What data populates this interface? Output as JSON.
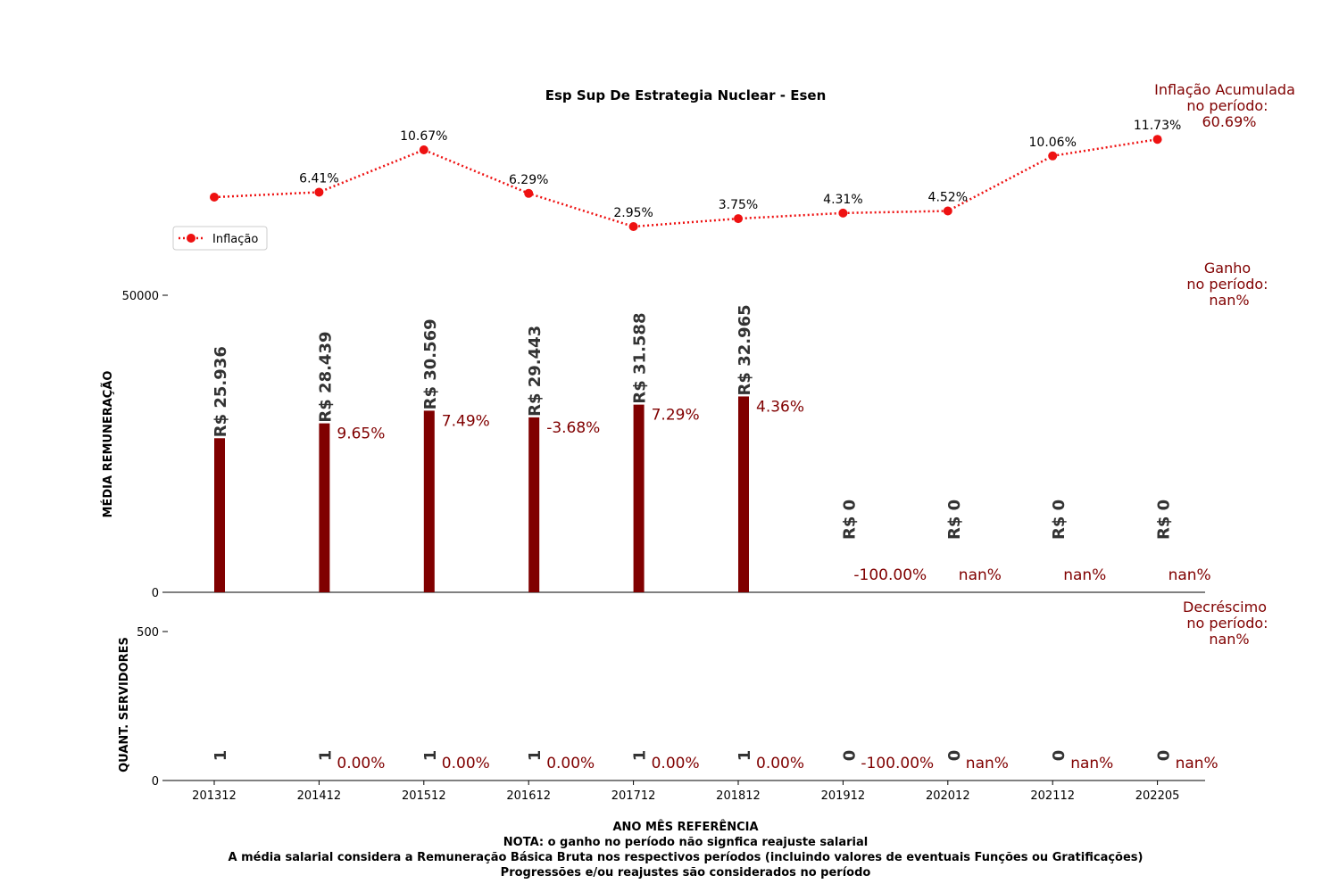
{
  "chart_data": {
    "title": "Esp Sup De Estrategia Nuclear - Esen",
    "type": "bar",
    "categories": [
      "201312",
      "201412",
      "201512",
      "201612",
      "201712",
      "201812",
      "201912",
      "202012",
      "202112",
      "202205"
    ],
    "inflation": {
      "legend": "Inflação",
      "values": [
        5.91,
        6.41,
        10.67,
        6.29,
        2.95,
        3.75,
        4.31,
        4.52,
        10.06,
        11.73
      ],
      "labels": [
        "",
        "6.41%",
        "10.67%",
        "6.29%",
        "2.95%",
        "3.75%",
        "4.31%",
        "4.52%",
        "10.06%",
        "11.73%"
      ],
      "color": "#ee1111"
    },
    "salary": {
      "ylabel": "MÉDIA REMUNERAÇÃO",
      "yticks": [
        {
          "v": 0,
          "t": "0"
        },
        {
          "v": 50000,
          "t": "50000"
        }
      ],
      "ylim": [
        0,
        50000
      ],
      "values": [
        25936,
        28439,
        30569,
        29443,
        31588,
        32965,
        0,
        0,
        0,
        0
      ],
      "labels": [
        "R$ 25.936",
        "R$ 28.439",
        "R$ 30.569",
        "R$ 29.443",
        "R$ 31.588",
        "R$ 32.965",
        "R$ 0",
        "R$ 0",
        "R$ 0",
        "R$ 0"
      ],
      "pct": [
        "",
        "9.65%",
        "7.49%",
        "-3.68%",
        "7.29%",
        "4.36%",
        "-100.00%",
        "nan%",
        "nan%",
        "nan%"
      ],
      "color": "#800000"
    },
    "servers": {
      "ylabel": "QUANT. SERVIDORES",
      "yticks": [
        {
          "v": 0,
          "t": "0"
        },
        {
          "v": 500,
          "t": "500"
        }
      ],
      "ylim": [
        0,
        500
      ],
      "values": [
        1,
        1,
        1,
        1,
        1,
        1,
        0,
        0,
        0,
        0
      ],
      "labels": [
        "1",
        "1",
        "1",
        "1",
        "1",
        "1",
        "0",
        "0",
        "0",
        "0"
      ],
      "pct": [
        "",
        "0.00%",
        "0.00%",
        "0.00%",
        "0.00%",
        "0.00%",
        "-100.00%",
        "nan%",
        "nan%",
        "nan%"
      ]
    },
    "xlabel": "ANO MÊS REFERÊNCIA",
    "notes": [
      "NOTA: o ganho no período não signfica reajuste salarial",
      "A média salarial considera a Remuneração Básica Bruta nos respectivos períodos (incluindo valores de eventuais Funções ou Gratificações)",
      "Progressões e/ou reajustes são considerados no período"
    ],
    "side_notes": {
      "inflation": [
        "Inflação Acumulada",
        "no período:",
        "60.69%"
      ],
      "gain": [
        "Ganho",
        "no período:",
        "nan%"
      ],
      "decrease": [
        "Decréscimo",
        "no período:",
        "nan%"
      ]
    },
    "legend_placement": "left"
  }
}
